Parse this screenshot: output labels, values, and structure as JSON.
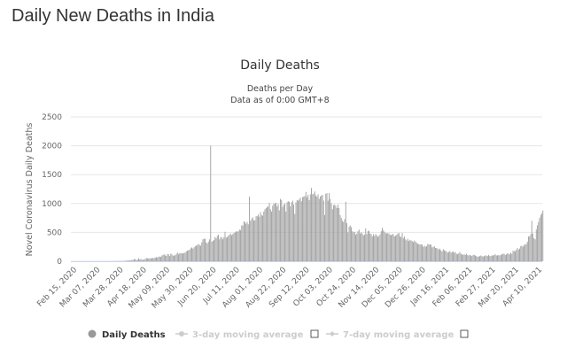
{
  "page": {
    "title": "Daily New Deaths in India"
  },
  "chart_data": {
    "type": "bar",
    "title": "Daily Deaths",
    "subtitle": [
      "Deaths per Day",
      "Data as of 0:00 GMT+8"
    ],
    "ylabel": "Novel Coronavirus Daily Deaths",
    "xlabel": "",
    "ylim": [
      0,
      2500
    ],
    "yticks": [
      0,
      500,
      1000,
      1500,
      2000,
      2500
    ],
    "grid": true,
    "bar_color": "#999999",
    "start_date": "Feb 15, 2020",
    "xtick_labels": [
      "Feb 15, 2020",
      "Mar 07, 2020",
      "Mar 28, 2020",
      "Apr 18, 2020",
      "May 09, 2020",
      "May 30, 2020",
      "Jun 20, 2020",
      "Jul 11, 2020",
      "Aug 01, 2020",
      "Aug 22, 2020",
      "Sep 12, 2020",
      "Oct 03, 2020",
      "Oct 24, 2020",
      "Nov 14, 2020",
      "Dec 05, 2020",
      "Dec 26, 2020",
      "Jan 16, 2021",
      "Feb 06, 2021",
      "Feb 27, 2021",
      "Mar 20, 2021",
      "Apr 10, 2021"
    ],
    "values": [
      0,
      0,
      0,
      0,
      0,
      0,
      0,
      0,
      0,
      0,
      0,
      0,
      0,
      0,
      0,
      0,
      0,
      0,
      0,
      0,
      0,
      0,
      0,
      0,
      0,
      1,
      0,
      0,
      0,
      0,
      0,
      1,
      0,
      1,
      0,
      1,
      3,
      2,
      1,
      3,
      1,
      5,
      3,
      2,
      7,
      4,
      5,
      13,
      11,
      12,
      15,
      12,
      27,
      20,
      35,
      40,
      17,
      27,
      52,
      33,
      38,
      25,
      23,
      36,
      37,
      57,
      50,
      47,
      54,
      46,
      58,
      54,
      57,
      62,
      70,
      67,
      78,
      82,
      75,
      100,
      110,
      120,
      101,
      93,
      125,
      120,
      90,
      130,
      120,
      95,
      100,
      103,
      130,
      150,
      120,
      140,
      140,
      140,
      135,
      145,
      150,
      170,
      185,
      190,
      200,
      225,
      240,
      220,
      240,
      260,
      270,
      280,
      300,
      280,
      270,
      330,
      380,
      390,
      390,
      325,
      310,
      340,
      380,
      2003,
      340,
      350,
      370,
      420,
      400,
      440,
      460,
      380,
      420,
      410,
      380,
      420,
      510,
      410,
      420,
      440,
      460,
      480,
      450,
      470,
      490,
      500,
      520,
      510,
      520,
      550,
      540,
      620,
      620,
      690,
      680,
      650,
      680,
      640,
      1120,
      700,
      740,
      760,
      710,
      710,
      780,
      780,
      810,
      770,
      850,
      800,
      790,
      860,
      900,
      920,
      940,
      950,
      1010,
      900,
      860,
      960,
      1000,
      1000,
      1010,
      950,
      990,
      880,
      1080,
      1060,
      940,
      980,
      1000,
      860,
      1020,
      1040,
      1030,
      950,
      1020,
      1050,
      980,
      820,
      1020,
      1060,
      1050,
      1070,
      1100,
      1040,
      1110,
      1120,
      1130,
      1200,
      1110,
      1150,
      1060,
      1160,
      1270,
      1160,
      1170,
      1210,
      1140,
      1120,
      1160,
      1080,
      1120,
      1140,
      1150,
      1050,
      800,
      1170,
      1180,
      1050,
      1180,
      1080,
      1000,
      900,
      970,
      980,
      960,
      920,
      980,
      920,
      800,
      750,
      700,
      680,
      730,
      1030,
      660,
      500,
      600,
      620,
      590,
      520,
      500,
      510,
      460,
      480,
      520,
      550,
      480,
      500,
      480,
      450,
      460,
      570,
      470,
      520,
      530,
      480,
      470,
      430,
      470,
      440,
      470,
      450,
      420,
      440,
      470,
      520,
      580,
      540,
      510,
      490,
      480,
      490,
      480,
      460,
      450,
      470,
      470,
      430,
      440,
      460,
      480,
      490,
      430,
      420,
      490,
      400,
      430,
      380,
      360,
      390,
      350,
      370,
      360,
      350,
      330,
      360,
      340,
      320,
      300,
      300,
      290,
      290,
      290,
      250,
      270,
      250,
      260,
      300,
      290,
      290,
      290,
      240,
      250,
      260,
      230,
      230,
      220,
      200,
      220,
      190,
      170,
      210,
      190,
      180,
      170,
      150,
      160,
      180,
      150,
      160,
      170,
      150,
      160,
      130,
      120,
      140,
      160,
      130,
      120,
      110,
      120,
      110,
      130,
      110,
      100,
      110,
      100,
      90,
      110,
      110,
      100,
      90,
      80,
      80,
      90,
      100,
      90,
      80,
      90,
      100,
      100,
      90,
      110,
      90,
      90,
      100,
      100,
      110,
      120,
      100,
      100,
      110,
      100,
      110,
      120,
      130,
      130,
      110,
      120,
      140,
      130,
      120,
      150,
      130,
      180,
      180,
      170,
      200,
      230,
      200,
      220,
      260,
      270,
      250,
      280,
      290,
      300,
      340,
      430,
      430,
      470,
      700,
      480,
      400,
      380,
      550,
      620,
      680,
      750,
      800,
      830,
      880
    ],
    "legend": {
      "placement": "bottom",
      "items": [
        {
          "label": "Daily Deaths",
          "color": "#999999",
          "active": true
        },
        {
          "label": "3-day moving average",
          "color": "#cccccc",
          "active": false
        },
        {
          "label": "7-day moving average",
          "color": "#cccccc",
          "active": false
        }
      ]
    }
  }
}
